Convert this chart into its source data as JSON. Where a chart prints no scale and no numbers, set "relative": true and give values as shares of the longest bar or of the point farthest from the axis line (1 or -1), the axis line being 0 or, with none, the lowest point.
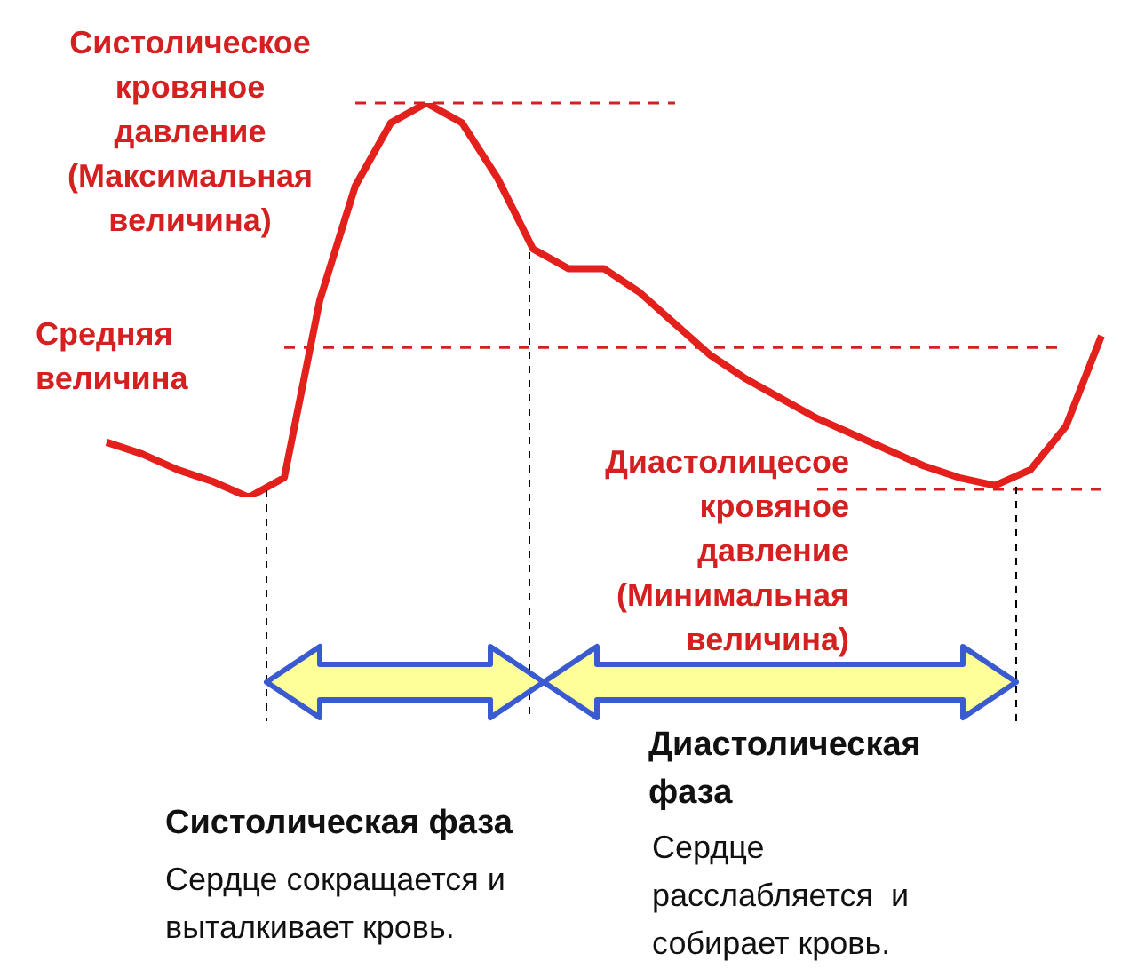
{
  "chart_data": {
    "type": "line",
    "relative": true,
    "categories": [
      null,
      null,
      null,
      null,
      null,
      null,
      null,
      null,
      null,
      null,
      null,
      null,
      null,
      null,
      null,
      null,
      null,
      null,
      null,
      null,
      null,
      null,
      null,
      null,
      null,
      null,
      null,
      null,
      null
    ],
    "series": [
      {
        "color": "#e3201b",
        "values": [
          0.14,
          0.11,
          0.07,
          0.04,
          0,
          0.05,
          0.5,
          0.79,
          0.95,
          1,
          0.95,
          0.81,
          0.63,
          0.58,
          0.58,
          0.52,
          0.44,
          0.36,
          0.3,
          0.25,
          0.2,
          0.16,
          0.12,
          0.08,
          0.05,
          0.03,
          0.07,
          0.18,
          0.41
        ]
      }
    ],
    "marker": "none",
    "line_style": "solid",
    "grid": false,
    "legend": false,
    "ref_lines": [
      {
        "axis": "y",
        "value": 1,
        "label": "Систолическое\nкровяное\nдавление\n(Максимальная\nвеличина)",
        "color": "#d42020",
        "line_style": "dashed"
      },
      {
        "axis": "y",
        "value": 0.38,
        "label": "Средняя\nвеличина",
        "color": "#d42020",
        "line_style": "dashed"
      },
      {
        "axis": "y",
        "value": 0.02,
        "label": "Диастолицесое\nкровяное\nдавление\n(Минимальная\nвеличина)",
        "color": "#d42020",
        "line_style": "dashed"
      }
    ],
    "annotations": [
      "Систолическая фаза",
      "Сердце сокращается и\nвыталкивает кровь.",
      "Диастолическая\nфаза",
      "Сердце\nрасслабляется  и\nсобирает кровь."
    ]
  }
}
